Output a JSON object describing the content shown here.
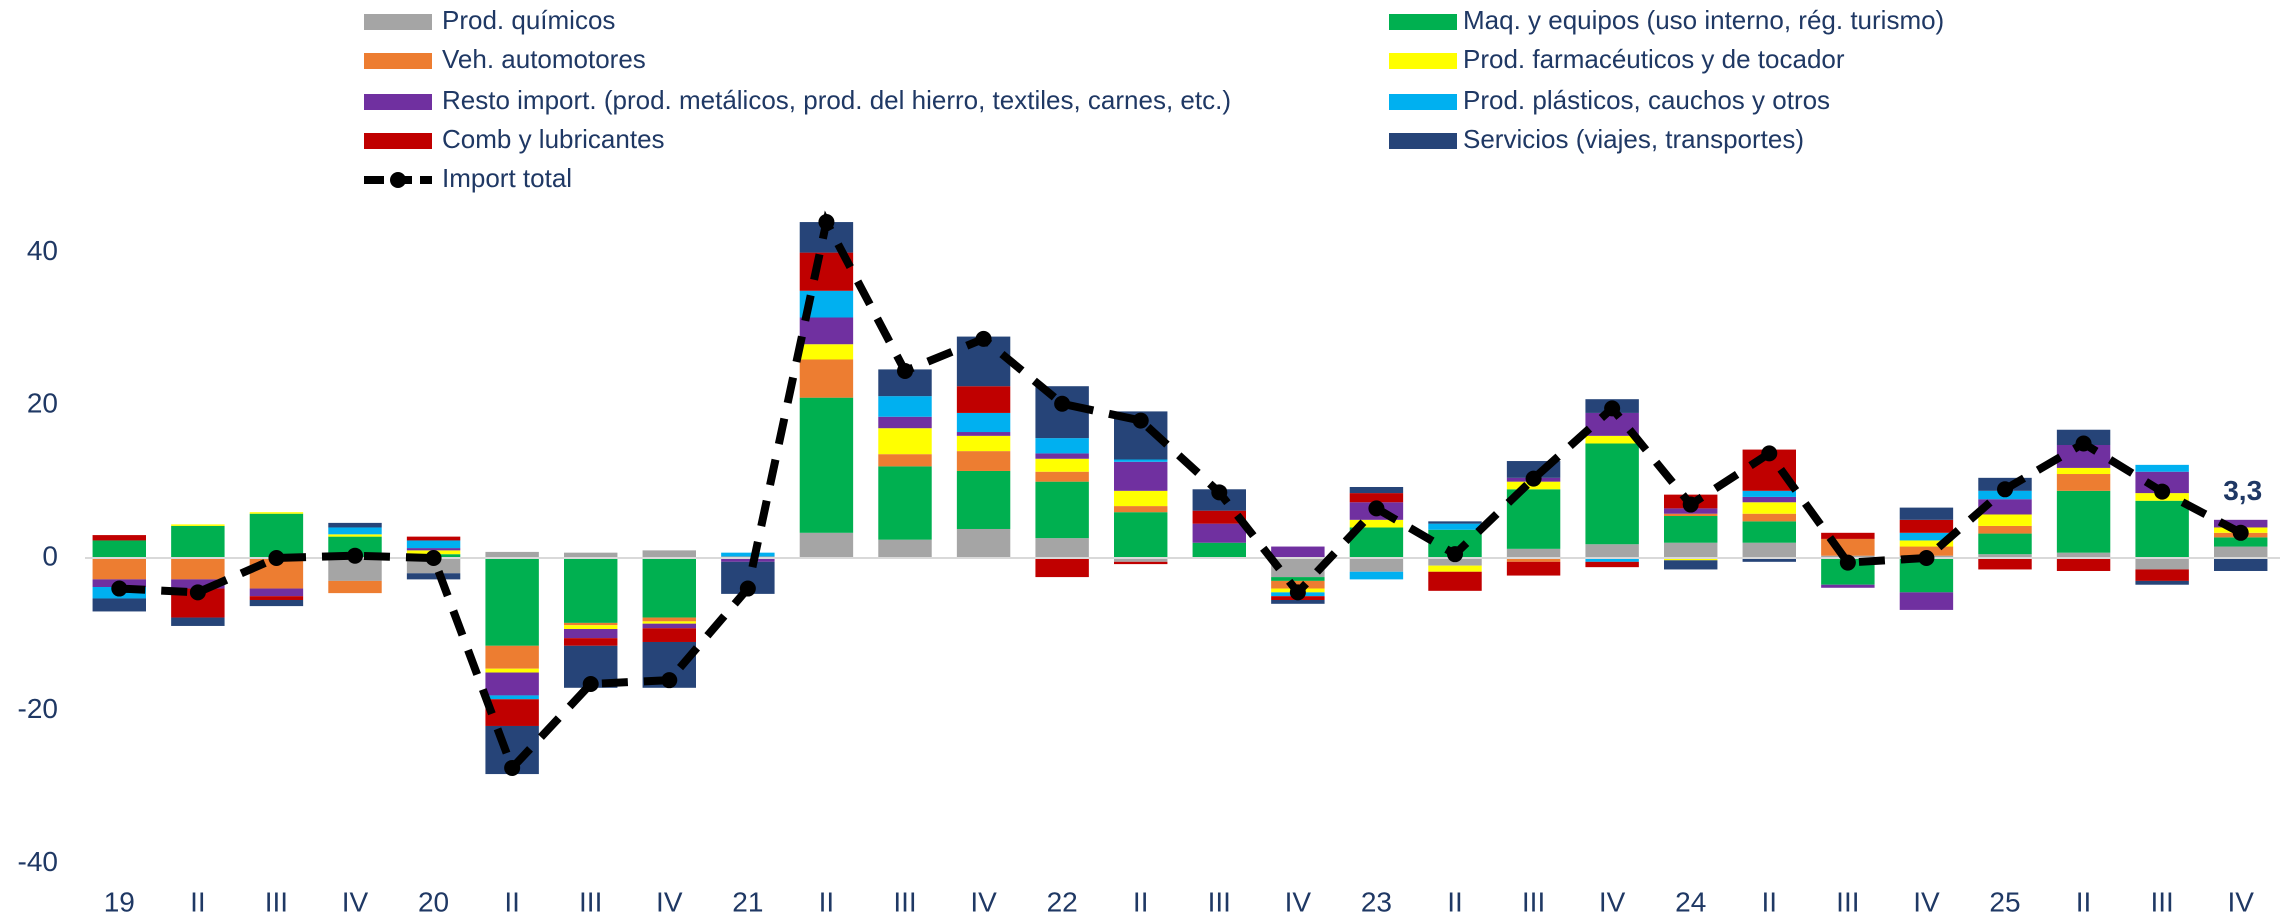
{
  "chart_data": {
    "type": "bar",
    "stacked": true,
    "categories": [
      "19",
      "II",
      "III",
      "IV",
      "20",
      "II",
      "III",
      "IV",
      "21",
      "II",
      "III",
      "IV",
      "22",
      "II",
      "III",
      "IV",
      "23",
      "II",
      "III",
      "IV",
      "24",
      "II",
      "III",
      "IV",
      "25",
      "II",
      "III",
      "IV"
    ],
    "series": [
      {
        "name": "Prod. químicos",
        "color": "#a5a5a5",
        "values": [
          0,
          0,
          0,
          -3,
          -2,
          0.8,
          0.7,
          1,
          0.2,
          3.3,
          2.4,
          3.8,
          2.6,
          -0.5,
          0,
          -2.5,
          -1.8,
          -1,
          1.2,
          1.8,
          2,
          2,
          0.3,
          0.3,
          0.5,
          0.7,
          -1.5,
          1.5
        ]
      },
      {
        "name": "Maq. y equipos (uso interno, rég. turismo)",
        "color": "#00b050",
        "values": [
          2.3,
          4.2,
          5.8,
          2.8,
          0.5,
          -11.5,
          -8.5,
          -7.8,
          0,
          17.7,
          9.6,
          7.6,
          7.4,
          6,
          2,
          -0.5,
          4,
          3.7,
          7.8,
          13.2,
          3.5,
          2.8,
          -3.5,
          -4.5,
          2.7,
          8.1,
          7.5,
          1.2
        ]
      },
      {
        "name": "Veh. automotores",
        "color": "#ed7d31",
        "values": [
          -2.8,
          -2.8,
          -4,
          -1.6,
          0,
          -3,
          -0.3,
          -0.5,
          0,
          5,
          1.6,
          2.6,
          1.3,
          0.8,
          0,
          -1,
          0,
          0,
          -0.5,
          0,
          0.3,
          1,
          2.2,
          1.2,
          1,
          2.2,
          0,
          0.6
        ]
      },
      {
        "name": "Prod. farmacéuticos y de tocador",
        "color": "#ffff00",
        "values": [
          0,
          0.2,
          0.2,
          0.3,
          0.5,
          -0.5,
          -0.5,
          -0.3,
          0,
          2,
          3.4,
          2,
          1.7,
          2,
          0,
          -0.5,
          1,
          -0.8,
          1,
          1,
          -0.3,
          1.5,
          0,
          0.8,
          1.5,
          0.8,
          1,
          0.7
        ]
      },
      {
        "name": "Resto import. (prod. metálicos, prod. del hierro, textiles, carnes, etc.)",
        "color": "#7030a0",
        "values": [
          -1,
          -1.2,
          -1,
          0,
          0.3,
          -3,
          -1.2,
          -0.6,
          -0.5,
          3.5,
          1.5,
          0.5,
          0.7,
          3.8,
          2.5,
          1.5,
          2.3,
          0,
          0.5,
          3,
          0.7,
          0.7,
          -0.4,
          -2.3,
          2,
          3,
          2.8,
          1
        ]
      },
      {
        "name": "Prod. plásticos, cauchos y otros",
        "color": "#00b0f0",
        "values": [
          -1.5,
          0,
          0,
          0.9,
          1,
          -0.5,
          0,
          0,
          0.5,
          3.5,
          2.7,
          2.5,
          2,
          0.3,
          0,
          -0.5,
          -1,
          0.8,
          0,
          -0.5,
          0,
          0.8,
          0,
          1,
          1.1,
          0,
          0.9,
          0
        ]
      },
      {
        "name": "Comb y lubricantes",
        "color": "#c00000",
        "values": [
          0.7,
          -3.8,
          -0.5,
          0,
          0.5,
          -3.5,
          -1,
          -1.8,
          0,
          5,
          0,
          3.5,
          -2.5,
          -0.3,
          1.7,
          -0.5,
          1.2,
          -2.5,
          -1.8,
          -0.7,
          1.8,
          5.4,
          0.8,
          1.7,
          -1.5,
          -1.7,
          -1.5,
          0
        ]
      },
      {
        "name": "Servicios (viajes, transportes)",
        "color": "#264478",
        "values": [
          -1.7,
          -1.1,
          -0.8,
          0.6,
          -0.8,
          -6.3,
          -5.5,
          -6,
          -4.2,
          4,
          3.5,
          6.5,
          6.8,
          6.3,
          2.8,
          -0.5,
          0.8,
          0.3,
          2.2,
          1.8,
          -1.2,
          -0.5,
          0,
          1.6,
          1.7,
          2,
          -0.5,
          -1.7
        ]
      }
    ],
    "line": {
      "name": "Import total",
      "color": "#000000",
      "values": [
        -4,
        -4.5,
        0,
        0.3,
        0,
        -27.5,
        -16.5,
        -16,
        -4,
        44,
        24.5,
        28.7,
        20.2,
        18,
        8.6,
        -4.5,
        6.5,
        0.5,
        10.4,
        19.6,
        7,
        13.7,
        -0.6,
        0,
        9,
        15,
        8.7,
        3.3
      ],
      "value_labels": [
        null,
        null,
        null,
        null,
        null,
        null,
        null,
        null,
        null,
        null,
        null,
        null,
        null,
        null,
        null,
        null,
        null,
        null,
        null,
        null,
        null,
        null,
        null,
        null,
        null,
        null,
        null,
        "3,3"
      ]
    },
    "ylim": [
      -42,
      45
    ],
    "yticks": [
      40,
      20,
      0,
      -20,
      -40
    ],
    "grid": false
  }
}
